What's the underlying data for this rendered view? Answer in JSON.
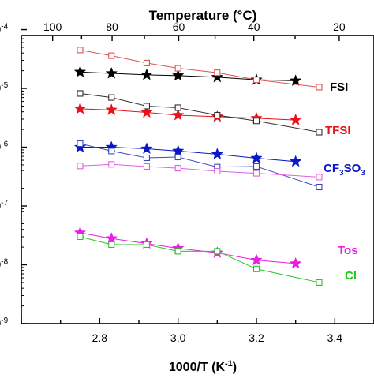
{
  "chart_data": {
    "type": "line",
    "title": "",
    "xlabel_main": "1000/T (K",
    "xlabel_sup": "-1",
    "xlabel_end": ")",
    "xlabel_top": "Temperature (°C)",
    "y_scale": "log",
    "xlim": [
      2.6,
      3.5
    ],
    "ylim_log10": [
      -9,
      -4.1
    ],
    "x_ticks": [
      "2.8",
      "3.0",
      "3.2",
      "3.4"
    ],
    "x_top_ticks": [
      "100",
      "80",
      "60",
      "40",
      "20"
    ],
    "y_tick_labels": [
      "-4",
      "-5",
      "-6",
      "-7",
      "-8",
      "-9"
    ],
    "grid": false,
    "annotations": [
      {
        "text": "FSI",
        "color": "#000000"
      },
      {
        "text": "TFSI",
        "color": "#e8121a"
      },
      {
        "text": "CF",
        "sub": "3",
        "text2": "SO",
        "sub2": "3",
        "color": "#0a16c8"
      },
      {
        "text": "Tos",
        "color": "#e81ee0"
      },
      {
        "text": "Cl",
        "color": "#22c81e"
      }
    ],
    "series": [
      {
        "label": "FSI",
        "color": "#000000",
        "marker": "star",
        "x": [
          2.75,
          2.83,
          2.92,
          3.0,
          3.1,
          3.2,
          3.3
        ],
        "y": [
          1.9e-05,
          1.8e-05,
          1.7e-05,
          1.65e-05,
          1.55e-05,
          1.4e-05,
          1.35e-05
        ]
      },
      {
        "label": "TFSI",
        "color": "#e8121a",
        "marker": "star",
        "x": [
          2.75,
          2.83,
          2.92,
          3.0,
          3.1,
          3.2,
          3.3
        ],
        "y": [
          4.5e-06,
          4.3e-06,
          3.9e-06,
          3.5e-06,
          3.3e-06,
          3.1e-06,
          2.9e-06
        ]
      },
      {
        "label": "CF3SO3",
        "color": "#0a16c8",
        "marker": "star",
        "x": [
          2.75,
          2.83,
          2.92,
          3.0,
          3.1,
          3.2,
          3.3
        ],
        "y": [
          1e-06,
          1e-06,
          9.4e-07,
          8.6e-07,
          7.6e-07,
          6.5e-07,
          5.7e-07
        ]
      },
      {
        "label": "Tos",
        "color": "#e81ee0",
        "marker": "star",
        "x": [
          2.75,
          2.83,
          2.92,
          3.0,
          3.1,
          3.2,
          3.3
        ],
        "y": [
          3.5e-08,
          2.8e-08,
          2.3e-08,
          1.9e-08,
          1.6e-08,
          1.2e-08,
          1.05e-08
        ]
      },
      {
        "label": "",
        "color": "#e05050",
        "marker": "square",
        "x": [
          2.75,
          2.83,
          2.92,
          3.0,
          3.1,
          3.2,
          3.36
        ],
        "y": [
          4.5e-05,
          3.6e-05,
          2.7e-05,
          2.2e-05,
          1.85e-05,
          1.4e-05,
          1.05e-05
        ]
      },
      {
        "label": "",
        "color": "#303030",
        "marker": "square",
        "x": [
          2.75,
          2.83,
          2.92,
          3.0,
          3.1,
          3.2,
          3.36
        ],
        "y": [
          8.2e-06,
          7e-06,
          5e-06,
          4.7e-06,
          3.5e-06,
          2.8e-06,
          1.8e-06
        ]
      },
      {
        "label": "",
        "color": "#3a48c0",
        "marker": "square",
        "x": [
          2.75,
          2.83,
          2.92,
          3.0,
          3.1,
          3.2,
          3.36
        ],
        "y": [
          1.15e-06,
          8.6e-07,
          6.6e-07,
          6.8e-07,
          4.6e-07,
          4.7e-07,
          2.1e-07
        ]
      },
      {
        "label": "",
        "color": "#e060e0",
        "marker": "square",
        "x": [
          2.75,
          2.83,
          2.92,
          3.0,
          3.1,
          3.2,
          3.36
        ],
        "y": [
          4.8e-07,
          5.1e-07,
          4.7e-07,
          4.4e-07,
          3.9e-07,
          3.6e-07,
          3.1e-07
        ]
      },
      {
        "label": "",
        "color": "#22c81e",
        "marker": "square",
        "x": [
          2.75,
          2.83,
          2.92,
          3.0,
          3.1,
          3.2,
          3.36
        ],
        "y": [
          3e-08,
          2.2e-08,
          2.2e-08,
          1.7e-08,
          1.7e-08,
          8.5e-09,
          5e-09
        ]
      }
    ]
  }
}
